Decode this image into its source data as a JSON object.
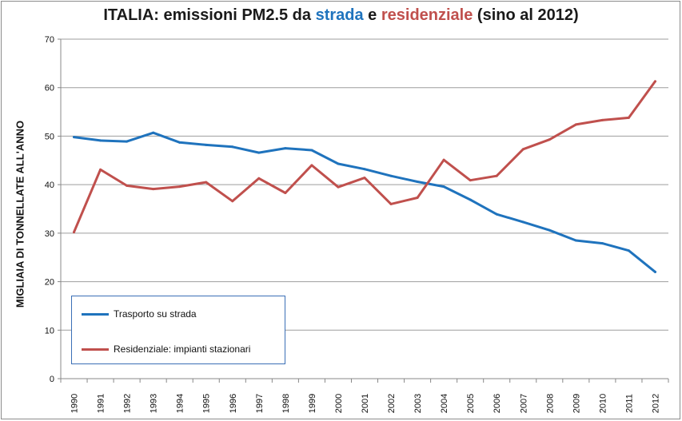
{
  "title": {
    "prefix": "ITALIA: emissioni PM2.5 da ",
    "word1": "strada",
    "mid": " e ",
    "word2": "residenziale",
    "suffix": " (sino al 2012)"
  },
  "colors": {
    "strada": "#1f73bd",
    "residenziale": "#c0504d",
    "grid": "#9e9e9e"
  },
  "chart_data": {
    "type": "line",
    "title": "ITALIA: emissioni PM2.5 da strada e residenziale (sino al 2012)",
    "xlabel": "",
    "ylabel": "MIGLIAIA DI TONNELLATE ALL'ANNO",
    "ylim": [
      0,
      70
    ],
    "yticks": [
      0,
      10,
      20,
      30,
      40,
      50,
      60,
      70
    ],
    "grid": true,
    "legend_position": "bottom-left",
    "x": [
      "1990",
      "1991",
      "1992",
      "1993",
      "1994",
      "1995",
      "1996",
      "1997",
      "1998",
      "1999",
      "2000",
      "2001",
      "2002",
      "2003",
      "2004",
      "2005",
      "2006",
      "2007",
      "2008",
      "2009",
      "2010",
      "2011",
      "2012"
    ],
    "series": [
      {
        "name": "Trasporto su strada",
        "color": "#1f73bd",
        "values": [
          49.8,
          49.1,
          48.9,
          50.7,
          48.7,
          48.2,
          47.8,
          46.6,
          47.5,
          47.1,
          44.3,
          43.2,
          41.8,
          40.6,
          39.6,
          36.9,
          33.9,
          32.3,
          30.6,
          28.5,
          27.9,
          26.4,
          22.0
        ]
      },
      {
        "name": "Residenziale: impianti stazionari",
        "color": "#c0504d",
        "values": [
          30.2,
          43.1,
          39.8,
          39.1,
          39.6,
          40.5,
          36.6,
          41.3,
          38.3,
          44.0,
          39.5,
          41.4,
          36.0,
          37.3,
          45.1,
          40.9,
          41.8,
          47.3,
          49.3,
          52.4,
          53.3,
          53.8,
          61.3
        ]
      }
    ]
  }
}
